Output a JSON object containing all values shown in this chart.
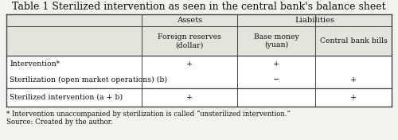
{
  "title": "Table 1 Sterilized intervention as seen in the central bank's balance sheet",
  "title_fontsize": 9.0,
  "header1_assets": "Assets",
  "header1_liabilities": "Liabilities",
  "header2": [
    "Foreign reserves\n(dollar)",
    "Base money\n(yuan)",
    "Central bank bills"
  ],
  "row_labels": [
    "Intervention*",
    "Sterilization (open market operations) (b)",
    "Sterilized intervention (a + b)"
  ],
  "cell_data": [
    [
      "+",
      "+",
      ""
    ],
    [
      "",
      "−",
      "+"
    ],
    [
      "+",
      "",
      "+"
    ]
  ],
  "footnote1": "* Intervention unaccompanied by sterilization is called “unsterilized intervention.”",
  "footnote2": "Source: Created by the author.",
  "bg_color": "#f2f2ee",
  "header_bg": "#e4e4dc",
  "line_color": "#444444",
  "text_color": "#111111",
  "font_size": 7.2,
  "figsize": [
    5.0,
    1.76
  ]
}
